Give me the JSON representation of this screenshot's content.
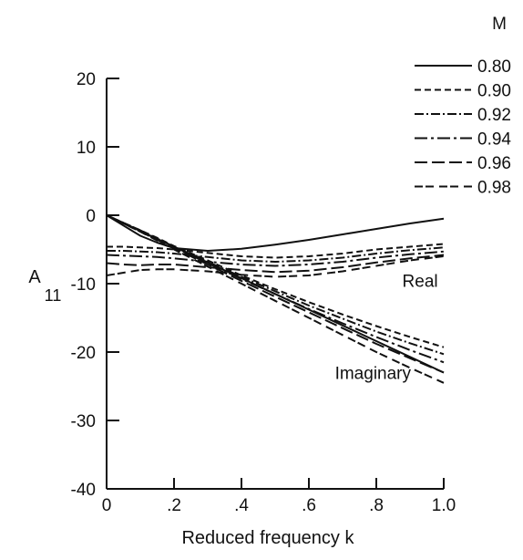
{
  "chart_data": {
    "type": "line",
    "title": "",
    "xlabel": "Reduced frequency k",
    "ylabel_main": "A",
    "ylabel_sub": "11",
    "xlim": [
      0,
      1.0
    ],
    "ylim": [
      -40,
      20
    ],
    "x_ticks": [
      0,
      0.2,
      0.4,
      0.6,
      0.8,
      1.0
    ],
    "x_tick_labels": [
      "0",
      ".2",
      ".4",
      ".6",
      ".8",
      "1.0"
    ],
    "y_ticks": [
      20,
      10,
      0,
      -10,
      -20,
      -30,
      -40
    ],
    "y_tick_labels": [
      "20",
      "10",
      "0",
      "-10",
      "-20",
      "-30",
      "-40"
    ],
    "grid": false,
    "legend": {
      "title": "M",
      "placement": "top-right",
      "entries": [
        {
          "label": "0.80",
          "dash": "solid"
        },
        {
          "label": "0.90",
          "dash": "dash"
        },
        {
          "label": "0.92",
          "dash": "dash-dot"
        },
        {
          "label": "0.94",
          "dash": "long-dash-dot"
        },
        {
          "label": "0.96",
          "dash": "long-dash"
        },
        {
          "label": "0.98",
          "dash": "dash-dash"
        }
      ]
    },
    "annotations": [
      {
        "text": "Real",
        "x": 0.93,
        "y": -9.5
      },
      {
        "text": "Imaginary",
        "x": 0.79,
        "y": -23
      }
    ],
    "x": [
      0,
      0.05,
      0.1,
      0.15,
      0.2,
      0.3,
      0.4,
      0.5,
      0.6,
      0.7,
      0.8,
      0.9,
      1.0
    ],
    "series": [
      {
        "name": "0.80 Real",
        "style": "solid",
        "part": "real",
        "values": [
          0,
          -1.5,
          -3,
          -4.0,
          -4.8,
          -5.2,
          -4.9,
          -4.3,
          -3.6,
          -2.8,
          -2.0,
          -1.2,
          -0.5
        ]
      },
      {
        "name": "0.80 Imaginary",
        "style": "solid",
        "part": "imag",
        "values": [
          0,
          -1.15,
          -2.3,
          -3.45,
          -4.6,
          -6.9,
          -9.2,
          -11.5,
          -13.8,
          -16.1,
          -18.4,
          -20.7,
          -23.0
        ]
      },
      {
        "name": "0.90 Real",
        "style": "dash",
        "part": "real",
        "values": [
          -4.6,
          -4.6,
          -4.7,
          -4.8,
          -5.0,
          -5.5,
          -6.0,
          -6.2,
          -6.0,
          -5.6,
          -5.0,
          -4.6,
          -4.2
        ]
      },
      {
        "name": "0.90 Imaginary",
        "style": "dash",
        "part": "imag",
        "values": [
          0,
          -1.1,
          -2.2,
          -3.3,
          -4.5,
          -6.6,
          -8.8,
          -10.8,
          -12.7,
          -14.5,
          -16.2,
          -17.8,
          -19.3
        ]
      },
      {
        "name": "0.92 Real",
        "style": "dash-dot",
        "part": "real",
        "values": [
          -5.2,
          -5.2,
          -5.3,
          -5.4,
          -5.6,
          -6.1,
          -6.6,
          -6.8,
          -6.6,
          -6.2,
          -5.6,
          -5.1,
          -4.7
        ]
      },
      {
        "name": "0.92 Imaginary",
        "style": "dash-dot",
        "part": "imag",
        "values": [
          0,
          -1.1,
          -2.2,
          -3.4,
          -4.6,
          -6.8,
          -9.0,
          -11.1,
          -13.2,
          -15.1,
          -17.0,
          -18.7,
          -20.3
        ]
      },
      {
        "name": "0.94 Real",
        "style": "long-dash-dot",
        "part": "real",
        "values": [
          -5.8,
          -5.9,
          -6.0,
          -6.1,
          -6.3,
          -6.8,
          -7.2,
          -7.4,
          -7.2,
          -6.8,
          -6.2,
          -5.7,
          -5.3
        ]
      },
      {
        "name": "0.94 Imaginary",
        "style": "long-dash-dot",
        "part": "imag",
        "values": [
          0,
          -1.1,
          -2.3,
          -3.5,
          -4.7,
          -7.0,
          -9.3,
          -11.5,
          -13.7,
          -15.8,
          -17.8,
          -19.7,
          -21.5
        ]
      },
      {
        "name": "0.96 Real",
        "style": "long-dash",
        "part": "real",
        "values": [
          -7.0,
          -7.2,
          -7.3,
          -7.2,
          -7.2,
          -7.6,
          -8.0,
          -8.3,
          -8.1,
          -7.6,
          -6.9,
          -6.3,
          -5.8
        ]
      },
      {
        "name": "0.96 Imaginary",
        "style": "long-dash",
        "part": "imag",
        "values": [
          0,
          -1.2,
          -2.4,
          -3.6,
          -4.8,
          -7.2,
          -9.6,
          -11.9,
          -14.2,
          -16.5,
          -18.8,
          -20.9,
          -23.0
        ]
      },
      {
        "name": "0.98 Real",
        "style": "dash-dash",
        "part": "real",
        "values": [
          -8.8,
          -8.4,
          -8.0,
          -7.9,
          -7.9,
          -8.2,
          -8.7,
          -9.0,
          -8.8,
          -8.2,
          -7.4,
          -6.6,
          -6.0
        ]
      },
      {
        "name": "0.98 Imaginary",
        "style": "dash-dash",
        "part": "imag",
        "values": [
          0,
          -1.2,
          -2.4,
          -3.7,
          -5.0,
          -7.5,
          -10.0,
          -12.5,
          -15.0,
          -17.5,
          -20.0,
          -22.3,
          -24.5
        ]
      }
    ]
  }
}
